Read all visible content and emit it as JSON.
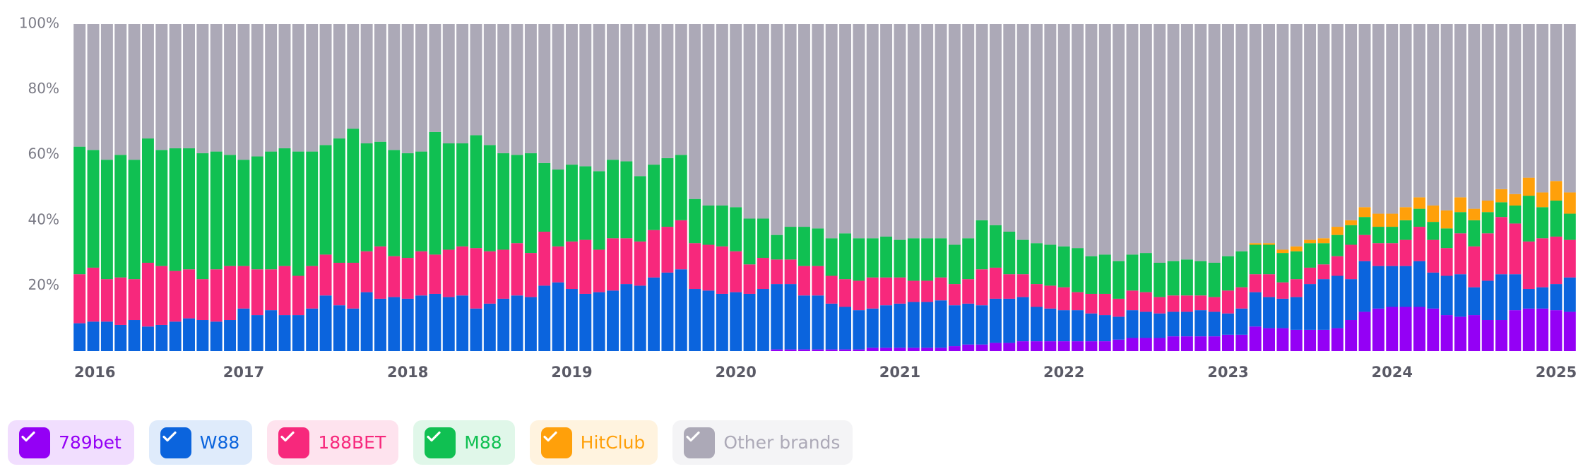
{
  "chart_data": {
    "type": "stacked_bar",
    "categories": [
      "2016",
      null,
      null,
      null,
      null,
      null,
      null,
      null,
      null,
      null,
      null,
      null,
      "2017",
      null,
      null,
      null,
      null,
      null,
      null,
      null,
      null,
      null,
      null,
      null,
      "2018",
      null,
      null,
      null,
      null,
      null,
      null,
      null,
      null,
      null,
      null,
      null,
      "2019",
      null,
      null,
      null,
      null,
      null,
      null,
      null,
      null,
      null,
      null,
      null,
      "2020",
      null,
      null,
      null,
      null,
      null,
      null,
      null,
      null,
      null,
      null,
      null,
      "2021",
      null,
      null,
      null,
      null,
      null,
      null,
      null,
      null,
      null,
      null,
      null,
      "2022",
      null,
      null,
      null,
      null,
      null,
      null,
      null,
      null,
      null,
      null,
      null,
      "2023",
      null,
      null,
      null,
      null,
      null,
      null,
      null,
      null,
      null,
      null,
      null,
      "2024",
      null,
      null,
      null,
      null,
      null,
      null,
      null,
      null,
      null,
      null,
      null,
      "2025",
      null
    ],
    "series": [
      {
        "name": "789bet",
        "color": "#9400f5",
        "values": [
          0,
          0,
          0,
          0,
          0,
          0,
          0,
          0,
          0,
          0,
          0,
          0,
          0,
          0,
          0,
          0,
          0,
          0,
          0,
          0,
          0,
          0,
          0,
          0,
          0,
          0,
          0,
          0,
          0,
          0,
          0,
          0,
          0,
          0,
          0,
          0,
          0,
          0,
          0,
          0,
          0,
          0,
          0,
          0,
          0,
          0,
          0,
          0,
          0,
          0,
          0,
          0.5,
          0.5,
          0.5,
          0.5,
          0.5,
          0.5,
          0.5,
          1,
          1,
          1,
          1,
          1,
          1,
          1.5,
          2,
          2,
          2.5,
          2.5,
          3,
          3,
          3,
          3,
          3,
          3,
          3,
          3.5,
          4,
          4,
          4,
          4.5,
          4.5,
          4.5,
          4.5,
          5,
          5,
          7.5,
          7,
          7,
          6.5,
          6.5,
          6.5,
          7,
          9.5,
          12,
          13,
          13.5,
          13.5,
          13.5,
          13,
          11,
          10.5,
          11,
          9.5,
          9.5,
          12.5,
          13,
          13,
          12.5,
          12
        ]
      },
      {
        "name": "W88",
        "color": "#0b64dd",
        "values": [
          8.5,
          9,
          9,
          8,
          9.5,
          7.5,
          8,
          9,
          10,
          9.5,
          9,
          9.5,
          13,
          11,
          12.5,
          11,
          11,
          13,
          17,
          14,
          13,
          18,
          16,
          16.5,
          16,
          17,
          17.5,
          16.5,
          17,
          13,
          14.5,
          16,
          17,
          16.5,
          20,
          21,
          19,
          17.5,
          18,
          18.5,
          20.5,
          20,
          22.5,
          24,
          25,
          19,
          18.5,
          17.5,
          18,
          17.5,
          19,
          20,
          20,
          16.5,
          16.5,
          14,
          13,
          12,
          12,
          13,
          13.5,
          14,
          14,
          14.5,
          12.5,
          12.5,
          12,
          13.5,
          13.5,
          13.5,
          10.5,
          10,
          9.5,
          9.5,
          8.5,
          8,
          7,
          8.5,
          8,
          7.5,
          7.5,
          7.5,
          8,
          7.5,
          6.5,
          8,
          10.5,
          9.5,
          9,
          10,
          14,
          15.5,
          16,
          12.5,
          15.5,
          13,
          12.5,
          12.5,
          14,
          11,
          12,
          13,
          8.5,
          12,
          14,
          11,
          6,
          6.5,
          8,
          10.5
        ]
      },
      {
        "name": "188BET",
        "color": "#f7287c",
        "values": [
          15,
          16.5,
          13,
          14.5,
          12.5,
          19.5,
          18,
          15.5,
          15,
          12.5,
          16,
          16.5,
          13,
          14,
          12.5,
          15,
          12,
          13,
          12.5,
          13,
          14,
          12.5,
          16,
          12.5,
          12.5,
          13.5,
          12,
          14.5,
          15,
          18.5,
          16,
          15,
          16,
          13.5,
          16.5,
          11,
          14.5,
          16.5,
          13,
          16,
          14,
          13.5,
          14.5,
          14,
          15,
          14,
          14,
          14.5,
          12.5,
          9,
          9.5,
          7.5,
          7.5,
          9,
          9,
          8.5,
          8.5,
          9,
          9.5,
          8.5,
          8,
          6.5,
          6.5,
          7,
          6.5,
          7.5,
          11,
          9.5,
          7.5,
          7,
          7,
          7,
          7,
          5.5,
          6,
          6.5,
          5.5,
          6,
          6,
          5,
          5,
          5,
          4.5,
          4.5,
          7,
          6.5,
          5.5,
          7,
          5,
          5.5,
          5,
          4.5,
          6,
          10.5,
          8,
          7,
          7,
          8,
          10.5,
          10,
          8.5,
          12.5,
          12.5,
          14.5,
          17.5,
          15.5,
          14.5,
          15,
          14.5,
          11.5
        ]
      },
      {
        "name": "M88",
        "color": "#10c052",
        "values": [
          39,
          36,
          36.5,
          37.5,
          36.5,
          38,
          35.5,
          37.5,
          37,
          38.5,
          36,
          34,
          32.5,
          34.5,
          36,
          36,
          38,
          35,
          33.5,
          38,
          41,
          33,
          32,
          32.5,
          32,
          30.5,
          37.5,
          32.5,
          31.5,
          34.5,
          32.5,
          29.5,
          27,
          30.5,
          21,
          23.5,
          23.5,
          22.5,
          24,
          24,
          23.5,
          20,
          20,
          21,
          20,
          13.5,
          12,
          12.5,
          13.5,
          14,
          12,
          7.5,
          10,
          12,
          11.5,
          11.5,
          14,
          13,
          12,
          12.5,
          11.5,
          13,
          13,
          12,
          12,
          12.5,
          15,
          13,
          13,
          10.5,
          12.5,
          12.5,
          12.5,
          13.5,
          11.5,
          12,
          11.5,
          11,
          12,
          10.5,
          10.5,
          11,
          10.5,
          10.5,
          10.5,
          11,
          9,
          9,
          9,
          8.5,
          7.5,
          6.5,
          6.5,
          6,
          5.5,
          5,
          5,
          6,
          5.5,
          5.5,
          6,
          6.5,
          8,
          6.5,
          4.5,
          5.5,
          14,
          9.5,
          11,
          8
        ]
      },
      {
        "name": "HitClub",
        "color": "#ffa00a",
        "values": [
          0,
          0,
          0,
          0,
          0,
          0,
          0,
          0,
          0,
          0,
          0,
          0,
          0,
          0,
          0,
          0,
          0,
          0,
          0,
          0,
          0,
          0,
          0,
          0,
          0,
          0,
          0,
          0,
          0,
          0,
          0,
          0,
          0,
          0,
          0,
          0,
          0,
          0,
          0,
          0,
          0,
          0,
          0,
          0,
          0,
          0,
          0,
          0,
          0,
          0,
          0,
          0,
          0,
          0,
          0,
          0,
          0,
          0,
          0,
          0,
          0,
          0,
          0,
          0,
          0,
          0,
          0,
          0,
          0,
          0,
          0,
          0,
          0,
          0,
          0,
          0,
          0,
          0,
          0,
          0,
          0,
          0,
          0,
          0,
          0,
          0,
          0.5,
          0.5,
          1,
          1.5,
          1,
          1.5,
          2.5,
          1.5,
          3,
          4,
          4,
          4,
          3.5,
          5,
          5.5,
          4.5,
          3.5,
          3.5,
          4,
          3.5,
          5.5,
          4.5,
          6,
          6.5
        ]
      },
      {
        "name": "Other brands",
        "color": "#aca9b7",
        "values": [
          37.5,
          38.5,
          41.5,
          40,
          41.5,
          35,
          38.5,
          38,
          38,
          39.5,
          39,
          40,
          41.5,
          40.5,
          39,
          38,
          39,
          39,
          37,
          35,
          32,
          36.5,
          36,
          38.5,
          39.5,
          39,
          33,
          36.5,
          36.5,
          34,
          37,
          39.5,
          40,
          39.5,
          42.5,
          44.5,
          43,
          43.5,
          45,
          41.5,
          42,
          46.5,
          43,
          41,
          40,
          53.5,
          55.5,
          55.5,
          56,
          59.5,
          59.5,
          64.5,
          62,
          62,
          62.5,
          65.5,
          64,
          65.5,
          65.5,
          65,
          66,
          65.5,
          65.5,
          65.5,
          67.5,
          65.5,
          60,
          61.5,
          63.5,
          66,
          67,
          67.5,
          68,
          68.5,
          71,
          70.5,
          72.5,
          70.5,
          70,
          73,
          72.5,
          72,
          72.5,
          73,
          71,
          69.5,
          67,
          67,
          69,
          68,
          66,
          65.5,
          62,
          60,
          56,
          58,
          58,
          56,
          53,
          55.5,
          57,
          53,
          56.5,
          54,
          50.5,
          52,
          47,
          51.5,
          48,
          51.5
        ]
      }
    ],
    "ylim": [
      0,
      100
    ],
    "yticks": [
      {
        "value": 20,
        "label": "20%"
      },
      {
        "value": 40,
        "label": "40%"
      },
      {
        "value": 60,
        "label": "60%"
      },
      {
        "value": 80,
        "label": "80%"
      },
      {
        "value": 100,
        "label": "100%"
      }
    ]
  }
}
